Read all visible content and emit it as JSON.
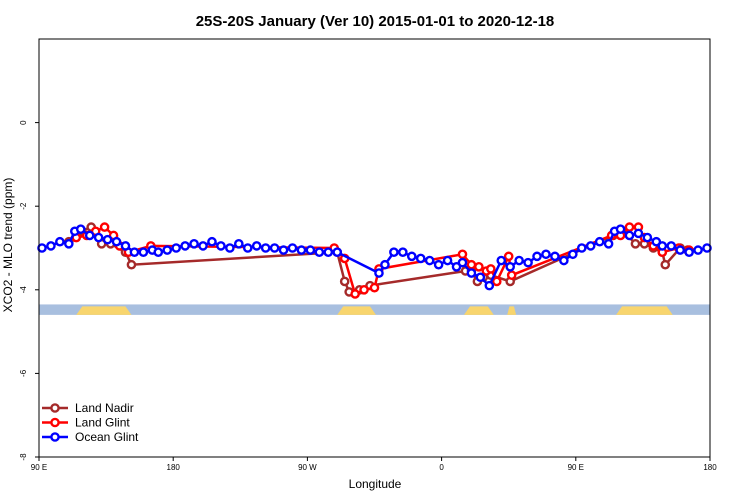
{
  "chart_data": {
    "type": "line",
    "title": "25S-20S January (Ver 10)   2015-01-01 to 2020-12-18",
    "xlabel": "Longitude",
    "ylabel": "XCO2 - MLO trend (ppm)",
    "xlim": [
      0,
      450
    ],
    "ylim": [
      -8,
      2
    ],
    "x_ticks": [
      {
        "value": 0,
        "label": "90 E"
      },
      {
        "value": 90,
        "label": "180"
      },
      {
        "value": 180,
        "label": "90 W"
      },
      {
        "value": 270,
        "label": "0"
      },
      {
        "value": 360,
        "label": "90 E"
      },
      {
        "value": 450,
        "label": "180"
      }
    ],
    "y_ticks": [
      {
        "value": 0,
        "label": "0"
      },
      {
        "value": -2,
        "label": "-2"
      },
      {
        "value": -4,
        "label": "-4"
      },
      {
        "value": -6,
        "label": "-6"
      },
      {
        "value": -8,
        "label": "-8"
      }
    ],
    "legend_position": "bottom-left",
    "land_band": {
      "y_range": [
        -4.35,
        -4.6
      ],
      "ocean_color": "#a8bfdf",
      "land_color": "#f8d56e",
      "land_segments": [
        [
          25,
          62
        ],
        [
          200,
          226
        ],
        [
          285,
          305
        ],
        [
          314,
          320
        ],
        [
          387,
          425
        ]
      ]
    },
    "series": [
      {
        "name": "Land Nadir",
        "color": "#a52a2a",
        "points": [
          [
            20,
            -2.85
          ],
          [
            28,
            -2.6
          ],
          [
            35,
            -2.5
          ],
          [
            42,
            -2.9
          ],
          [
            48,
            -2.9
          ],
          [
            58,
            -3.1
          ],
          [
            62,
            -3.4
          ],
          [
            200,
            -3.1
          ],
          [
            205,
            -3.8
          ],
          [
            208,
            -4.05
          ],
          [
            215,
            -4.0
          ],
          [
            222,
            -3.9
          ],
          [
            286,
            -3.55
          ],
          [
            290,
            -3.55
          ],
          [
            294,
            -3.8
          ],
          [
            298,
            -3.7
          ],
          [
            303,
            -3.65
          ],
          [
            316,
            -3.8
          ],
          [
            385,
            -2.7
          ],
          [
            392,
            -2.6
          ],
          [
            400,
            -2.9
          ],
          [
            406,
            -2.9
          ],
          [
            412,
            -3.0
          ],
          [
            418,
            -3.1
          ],
          [
            420,
            -3.4
          ],
          [
            430,
            -3.0
          ],
          [
            435,
            -3.05
          ]
        ]
      },
      {
        "name": "Land Glint",
        "color": "#ff0000",
        "points": [
          [
            25,
            -2.75
          ],
          [
            32,
            -2.7
          ],
          [
            38,
            -2.6
          ],
          [
            44,
            -2.5
          ],
          [
            50,
            -2.7
          ],
          [
            54,
            -2.95
          ],
          [
            60,
            -3.1
          ],
          [
            75,
            -2.95
          ],
          [
            198,
            -3.0
          ],
          [
            205,
            -3.25
          ],
          [
            212,
            -4.1
          ],
          [
            218,
            -4.0
          ],
          [
            225,
            -3.95
          ],
          [
            228,
            -3.5
          ],
          [
            284,
            -3.15
          ],
          [
            290,
            -3.4
          ],
          [
            295,
            -3.45
          ],
          [
            300,
            -3.55
          ],
          [
            303,
            -3.5
          ],
          [
            307,
            -3.8
          ],
          [
            315,
            -3.2
          ],
          [
            317,
            -3.65
          ],
          [
            384,
            -2.7
          ],
          [
            390,
            -2.7
          ],
          [
            396,
            -2.5
          ],
          [
            402,
            -2.5
          ],
          [
            406,
            -2.75
          ],
          [
            412,
            -2.95
          ],
          [
            418,
            -3.1
          ],
          [
            429,
            -3.0
          ],
          [
            436,
            -3.05
          ]
        ]
      },
      {
        "name": "Ocean Glint",
        "color": "#0000ff",
        "points": [
          [
            2,
            -3.0
          ],
          [
            8,
            -2.95
          ],
          [
            14,
            -2.85
          ],
          [
            20,
            -2.9
          ],
          [
            24,
            -2.6
          ],
          [
            28,
            -2.55
          ],
          [
            34,
            -2.7
          ],
          [
            40,
            -2.75
          ],
          [
            46,
            -2.8
          ],
          [
            52,
            -2.85
          ],
          [
            58,
            -2.95
          ],
          [
            64,
            -3.1
          ],
          [
            70,
            -3.1
          ],
          [
            76,
            -3.05
          ],
          [
            80,
            -3.1
          ],
          [
            86,
            -3.05
          ],
          [
            92,
            -3.0
          ],
          [
            98,
            -2.95
          ],
          [
            104,
            -2.9
          ],
          [
            110,
            -2.95
          ],
          [
            116,
            -2.85
          ],
          [
            122,
            -2.95
          ],
          [
            128,
            -3.0
          ],
          [
            134,
            -2.9
          ],
          [
            140,
            -3.0
          ],
          [
            146,
            -2.95
          ],
          [
            152,
            -3.0
          ],
          [
            158,
            -3.0
          ],
          [
            164,
            -3.05
          ],
          [
            170,
            -3.0
          ],
          [
            176,
            -3.05
          ],
          [
            182,
            -3.05
          ],
          [
            188,
            -3.1
          ],
          [
            194,
            -3.1
          ],
          [
            200,
            -3.1
          ],
          [
            228,
            -3.6
          ],
          [
            232,
            -3.4
          ],
          [
            238,
            -3.1
          ],
          [
            244,
            -3.1
          ],
          [
            250,
            -3.2
          ],
          [
            256,
            -3.25
          ],
          [
            262,
            -3.3
          ],
          [
            268,
            -3.4
          ],
          [
            274,
            -3.3
          ],
          [
            280,
            -3.45
          ],
          [
            284,
            -3.35
          ],
          [
            290,
            -3.6
          ],
          [
            296,
            -3.7
          ],
          [
            302,
            -3.9
          ],
          [
            310,
            -3.3
          ],
          [
            316,
            -3.45
          ],
          [
            322,
            -3.3
          ],
          [
            328,
            -3.35
          ],
          [
            334,
            -3.2
          ],
          [
            340,
            -3.15
          ],
          [
            346,
            -3.2
          ],
          [
            352,
            -3.3
          ],
          [
            358,
            -3.15
          ],
          [
            364,
            -3.0
          ],
          [
            370,
            -2.95
          ],
          [
            376,
            -2.85
          ],
          [
            382,
            -2.9
          ],
          [
            386,
            -2.6
          ],
          [
            390,
            -2.55
          ],
          [
            396,
            -2.7
          ],
          [
            402,
            -2.65
          ],
          [
            408,
            -2.75
          ],
          [
            414,
            -2.85
          ],
          [
            418,
            -2.95
          ],
          [
            424,
            -2.95
          ],
          [
            430,
            -3.05
          ],
          [
            436,
            -3.1
          ],
          [
            442,
            -3.05
          ],
          [
            448,
            -3.0
          ]
        ]
      }
    ]
  }
}
